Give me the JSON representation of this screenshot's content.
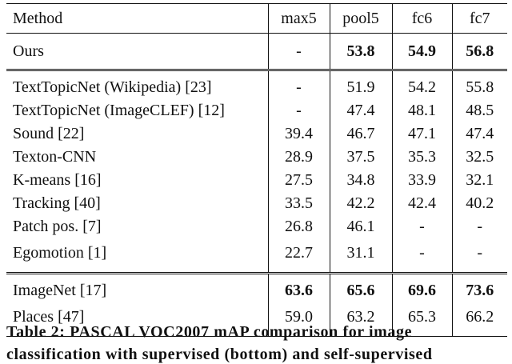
{
  "table": {
    "header": [
      "Method",
      "max5",
      "pool5",
      "fc6",
      "fc7"
    ],
    "groups": [
      [
        [
          "Ours",
          "-",
          "53.8",
          "54.9",
          "56.8"
        ]
      ],
      [
        [
          "TextTopicNet (Wikipedia) [23]",
          "-",
          "51.9",
          "54.2",
          "55.8"
        ],
        [
          "TextTopicNet (ImageCLEF) [12]",
          "-",
          "47.4",
          "48.1",
          "48.5"
        ],
        [
          "Sound [22]",
          "39.4",
          "46.7",
          "47.1",
          "47.4"
        ],
        [
          "Texton-CNN",
          "28.9",
          "37.5",
          "35.3",
          "32.5"
        ],
        [
          "K-means [16]",
          "27.5",
          "34.8",
          "33.9",
          "32.1"
        ],
        [
          "Tracking [40]",
          "33.5",
          "42.2",
          "42.4",
          "40.2"
        ],
        [
          "Patch pos. [7]",
          "26.8",
          "46.1",
          "-",
          "-"
        ],
        [
          "Egomotion [1]",
          "22.7",
          "31.1",
          "-",
          "-"
        ]
      ],
      [
        [
          "ImageNet [17]",
          "63.6",
          "65.6",
          "69.6",
          "73.6"
        ],
        [
          "Places [47]",
          "59.0",
          "63.2",
          "65.3",
          "66.2"
        ]
      ]
    ]
  },
  "caption": [
    "Table 2: PASCAL VOC2007 mAP comparison for image",
    "classification with supervised (bottom) and self-supervised"
  ]
}
